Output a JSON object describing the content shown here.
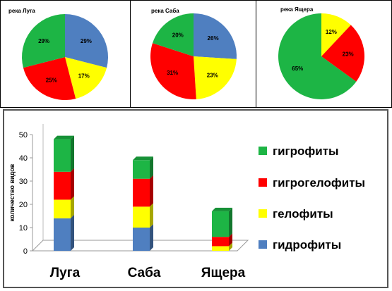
{
  "colors": {
    "green": "#1db545",
    "red": "#ff0000",
    "yellow": "#ffff00",
    "blue": "#4f7fc0"
  },
  "chart_data": [
    {
      "type": "pie",
      "title": "река Луга",
      "slices": [
        {
          "label": "29%",
          "value": 29,
          "color": "blue"
        },
        {
          "label": "17%",
          "value": 17,
          "color": "yellow"
        },
        {
          "label": "25%",
          "value": 25,
          "color": "red"
        },
        {
          "label": "29%",
          "value": 29,
          "color": "green"
        }
      ]
    },
    {
      "type": "pie",
      "title": "река Саба",
      "slices": [
        {
          "label": "26%",
          "value": 26,
          "color": "blue"
        },
        {
          "label": "23%",
          "value": 23,
          "color": "yellow"
        },
        {
          "label": "31%",
          "value": 31,
          "color": "red"
        },
        {
          "label": "20%",
          "value": 20,
          "color": "green"
        }
      ]
    },
    {
      "type": "pie",
      "title": "река Ящера",
      "slices": [
        {
          "label": "12%",
          "value": 12,
          "color": "yellow"
        },
        {
          "label": "23%",
          "value": 23,
          "color": "red"
        },
        {
          "label": "65%",
          "value": 65,
          "color": "green"
        }
      ]
    },
    {
      "type": "bar",
      "stacked": true,
      "categories": [
        "Луга",
        "Саба",
        "Ящера"
      ],
      "ylabel": "количество видов",
      "ylim": [
        0,
        50
      ],
      "yticks": [
        0,
        10,
        20,
        30,
        40,
        50
      ],
      "legend_position": "right",
      "series": [
        {
          "name": "гидрофиты",
          "color": "blue",
          "values": [
            14,
            10,
            0
          ]
        },
        {
          "name": "гелофиты",
          "color": "yellow",
          "values": [
            8,
            9,
            2
          ]
        },
        {
          "name": "гигрогелофиты",
          "color": "red",
          "values": [
            12,
            12,
            4
          ]
        },
        {
          "name": "гигрофиты",
          "color": "green",
          "values": [
            14,
            8,
            11
          ]
        }
      ]
    }
  ]
}
